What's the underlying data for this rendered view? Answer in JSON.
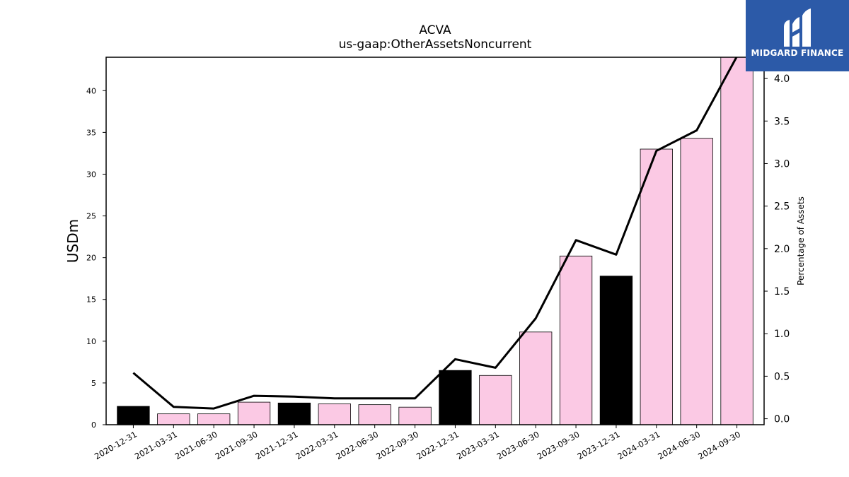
{
  "chart_data": {
    "type": "bar",
    "title": "ACVA",
    "subtitle": "us-gaap:OtherAssetsNoncurrent",
    "ylabel": "USDm",
    "y2label": "Percentage of Assets",
    "categories": [
      "2020-12-31",
      "2021-03-31",
      "2021-06-30",
      "2021-09-30",
      "2021-12-31",
      "2022-03-31",
      "2022-06-30",
      "2022-09-30",
      "2022-12-31",
      "2023-03-31",
      "2023-06-30",
      "2023-09-30",
      "2023-12-31",
      "2024-03-31",
      "2024-06-30",
      "2024-09-30"
    ],
    "ylim": [
      0,
      44
    ],
    "y2lim": [
      -0.07,
      4.25
    ],
    "yticks": [
      0,
      5,
      10,
      15,
      20,
      25,
      30,
      35,
      40
    ],
    "y2ticks": [
      "0.0",
      "0.5",
      "1.0",
      "1.5",
      "2.0",
      "2.5",
      "3.0",
      "3.5",
      "4.0"
    ],
    "grid": false,
    "series": [
      {
        "kind": "bar",
        "values": [
          2.2,
          1.3,
          1.3,
          2.7,
          2.6,
          2.5,
          2.4,
          2.1,
          6.5,
          5.9,
          11.1,
          20.2,
          17.8,
          33.0,
          34.3,
          44.5
        ],
        "colors": [
          "#000000",
          "#fbc9e4",
          "#fbc9e4",
          "#fbc9e4",
          "#000000",
          "#fbc9e4",
          "#fbc9e4",
          "#fbc9e4",
          "#000000",
          "#fbc9e4",
          "#fbc9e4",
          "#fbc9e4",
          "#000000",
          "#fbc9e4",
          "#fbc9e4",
          "#fbc9e4"
        ]
      },
      {
        "kind": "line",
        "axis": "right",
        "values": [
          0.54,
          0.14,
          0.12,
          0.27,
          0.26,
          0.24,
          0.24,
          0.24,
          0.7,
          0.6,
          1.18,
          2.1,
          1.93,
          3.15,
          3.39,
          4.26
        ],
        "color": "#000000"
      }
    ]
  },
  "logo": {
    "text": "MIDGARD FINANCE",
    "background": "#2c5aa8"
  }
}
